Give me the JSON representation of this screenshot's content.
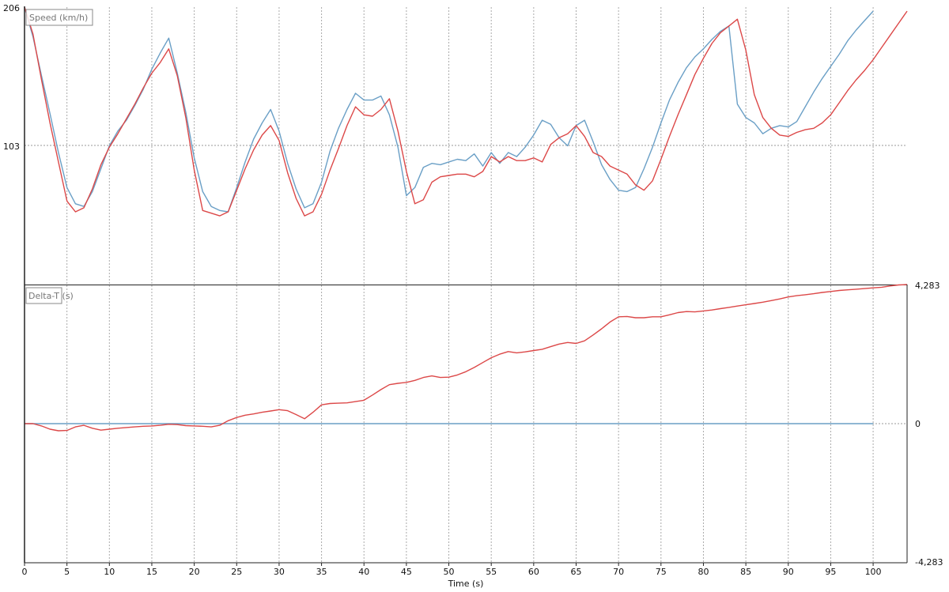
{
  "chart_data": {
    "type": "line",
    "x_axis": {
      "label": "Time (s)",
      "range": [
        0,
        104
      ],
      "ticks": [
        0,
        5,
        10,
        15,
        20,
        25,
        30,
        35,
        40,
        45,
        50,
        55,
        60,
        65,
        70,
        75,
        80,
        85,
        90,
        95,
        100
      ]
    },
    "grid": true,
    "colors": {
      "blue": "#6a9fc6",
      "red": "#dc4848",
      "grid": "#aaaaaa"
    },
    "panes": [
      {
        "label": "Speed (km/h)",
        "y_range": [
          0,
          206
        ],
        "y_ticks": [
          "206",
          "103"
        ],
        "y_tick_values": [
          206,
          103
        ],
        "y_tick_side": "left",
        "series": [
          {
            "color": "#6a9fc6",
            "x": [
              0,
              1,
              2,
              3,
              4,
              5,
              6,
              7,
              8,
              9,
              10,
              11,
              12,
              13,
              14,
              15,
              16,
              17,
              18,
              19,
              20,
              21,
              22,
              23,
              24,
              25,
              26,
              27,
              28,
              29,
              30,
              31,
              32,
              33,
              34,
              35,
              36,
              37,
              38,
              39,
              40,
              41,
              42,
              43,
              44,
              45,
              46,
              47,
              48,
              49,
              50,
              51,
              52,
              53,
              54,
              55,
              56,
              57,
              58,
              59,
              60,
              61,
              62,
              63,
              64,
              65,
              66,
              67,
              68,
              69,
              70,
              71,
              72,
              73,
              74,
              75,
              76,
              77,
              78,
              79,
              80,
              81,
              82,
              83,
              84,
              85,
              86,
              87,
              88,
              89,
              90,
              91,
              92,
              93,
              94,
              95,
              96,
              97,
              98,
              99,
              100
            ],
            "values": [
              206,
              184,
              155,
              127,
              98,
              72,
              60,
              58,
              69,
              86,
              103,
              114,
              122,
              133,
              145,
              160,
              172,
              183,
              157,
              128,
              94,
              69,
              58,
              55,
              54,
              72,
              91,
              108,
              120,
              130,
              114,
              90,
              71,
              57,
              60,
              76,
              99,
              116,
              130,
              142,
              137,
              137,
              140,
              126,
              102,
              66,
              72,
              87,
              90,
              89,
              91,
              93,
              92,
              97,
              88,
              98,
              90,
              98,
              95,
              102,
              111,
              122,
              119,
              109,
              103,
              118,
              122,
              106,
              89,
              78,
              70,
              69,
              72,
              86,
              102,
              120,
              137,
              150,
              161,
              169,
              175,
              182,
              188,
              192,
              134,
              124,
              120,
              112,
              116,
              118,
              117,
              121,
              132,
              143,
              153,
              162,
              171,
              181,
              189,
              196,
              203
            ]
          },
          {
            "color": "#dc4848",
            "x": [
              0,
              1,
              2,
              3,
              4,
              5,
              6,
              7,
              8,
              9,
              10,
              11,
              12,
              13,
              14,
              15,
              16,
              17,
              18,
              19,
              20,
              21,
              22,
              23,
              24,
              25,
              26,
              27,
              28,
              29,
              30,
              31,
              32,
              33,
              34,
              35,
              36,
              37,
              38,
              39,
              40,
              41,
              42,
              43,
              44,
              45,
              46,
              47,
              48,
              49,
              50,
              51,
              52,
              53,
              54,
              55,
              56,
              57,
              58,
              59,
              60,
              61,
              62,
              63,
              64,
              65,
              66,
              67,
              68,
              69,
              70,
              71,
              72,
              73,
              74,
              75,
              76,
              77,
              78,
              79,
              80,
              81,
              82,
              83,
              84,
              85,
              86,
              87,
              88,
              89,
              90,
              91,
              92,
              93,
              94,
              95,
              96,
              97,
              98,
              99,
              100,
              101,
              102,
              103,
              104
            ],
            "values": [
              206,
              186,
              152,
              120,
              91,
              62,
              54,
              57,
              71,
              89,
              102,
              112,
              123,
              134,
              146,
              157,
              165,
              175,
              155,
              124,
              85,
              55,
              53,
              51,
              54,
              70,
              86,
              100,
              111,
              118,
              107,
              83,
              64,
              51,
              54,
              67,
              85,
              101,
              118,
              132,
              126,
              125,
              130,
              138,
              114,
              84,
              60,
              63,
              76,
              80,
              81,
              82,
              82,
              80,
              84,
              95,
              91,
              95,
              92,
              92,
              94,
              91,
              104,
              109,
              112,
              118,
              110,
              98,
              95,
              88,
              85,
              82,
              74,
              70,
              77,
              93,
              110,
              126,
              141,
              156,
              168,
              179,
              187,
              192,
              197,
              174,
              141,
              124,
              116,
              111,
              110,
              113,
              115,
              116,
              120,
              126,
              135,
              144,
              152,
              159,
              167,
              176,
              185,
              194,
              203
            ]
          }
        ]
      },
      {
        "label": "Delta-T (s)",
        "y_range": [
          -4.283,
          4.283
        ],
        "y_ticks": [
          "4,283",
          "0",
          "-4,283"
        ],
        "y_tick_values": [
          4.283,
          0,
          -4.283
        ],
        "y_tick_side": "right",
        "series": [
          {
            "color": "#6a9fc6",
            "x": [
              0,
              100
            ],
            "values": [
              0,
              0
            ]
          },
          {
            "color": "#dc4848",
            "x": [
              0,
              1,
              2,
              3,
              4,
              5,
              6,
              7,
              8,
              9,
              10,
              11,
              12,
              13,
              14,
              15,
              16,
              17,
              18,
              19,
              20,
              21,
              22,
              23,
              24,
              25,
              26,
              27,
              28,
              29,
              30,
              31,
              32,
              33,
              34,
              35,
              36,
              37,
              38,
              39,
              40,
              41,
              42,
              43,
              44,
              45,
              46,
              47,
              48,
              49,
              50,
              51,
              52,
              53,
              54,
              55,
              56,
              57,
              58,
              59,
              60,
              61,
              62,
              63,
              64,
              65,
              66,
              67,
              68,
              69,
              70,
              71,
              72,
              73,
              74,
              75,
              76,
              77,
              78,
              79,
              80,
              81,
              82,
              83,
              84,
              85,
              86,
              87,
              88,
              89,
              90,
              91,
              92,
              93,
              94,
              95,
              96,
              97,
              98,
              99,
              100,
              101,
              102,
              103,
              104
            ],
            "values": [
              0,
              0,
              -0.07,
              -0.17,
              -0.22,
              -0.21,
              -0.1,
              -0.05,
              -0.14,
              -0.2,
              -0.17,
              -0.14,
              -0.12,
              -0.1,
              -0.08,
              -0.07,
              -0.05,
              -0.02,
              -0.03,
              -0.06,
              -0.07,
              -0.08,
              -0.1,
              -0.05,
              0.09,
              0.19,
              0.26,
              0.3,
              0.35,
              0.39,
              0.43,
              0.4,
              0.28,
              0.15,
              0.35,
              0.58,
              0.62,
              0.63,
              0.64,
              0.68,
              0.72,
              0.88,
              1.05,
              1.2,
              1.24,
              1.27,
              1.33,
              1.42,
              1.47,
              1.42,
              1.43,
              1.5,
              1.6,
              1.73,
              1.88,
              2.03,
              2.14,
              2.22,
              2.18,
              2.21,
              2.25,
              2.29,
              2.37,
              2.45,
              2.5,
              2.47,
              2.55,
              2.73,
              2.92,
              3.13,
              3.29,
              3.3,
              3.26,
              3.26,
              3.29,
              3.29,
              3.35,
              3.42,
              3.45,
              3.44,
              3.47,
              3.5,
              3.54,
              3.58,
              3.62,
              3.66,
              3.7,
              3.74,
              3.79,
              3.84,
              3.9,
              3.94,
              3.97,
              4.0,
              4.04,
              4.07,
              4.1,
              4.12,
              4.14,
              4.16,
              4.18,
              4.2,
              4.24,
              4.27,
              4.283
            ]
          }
        ]
      }
    ]
  }
}
